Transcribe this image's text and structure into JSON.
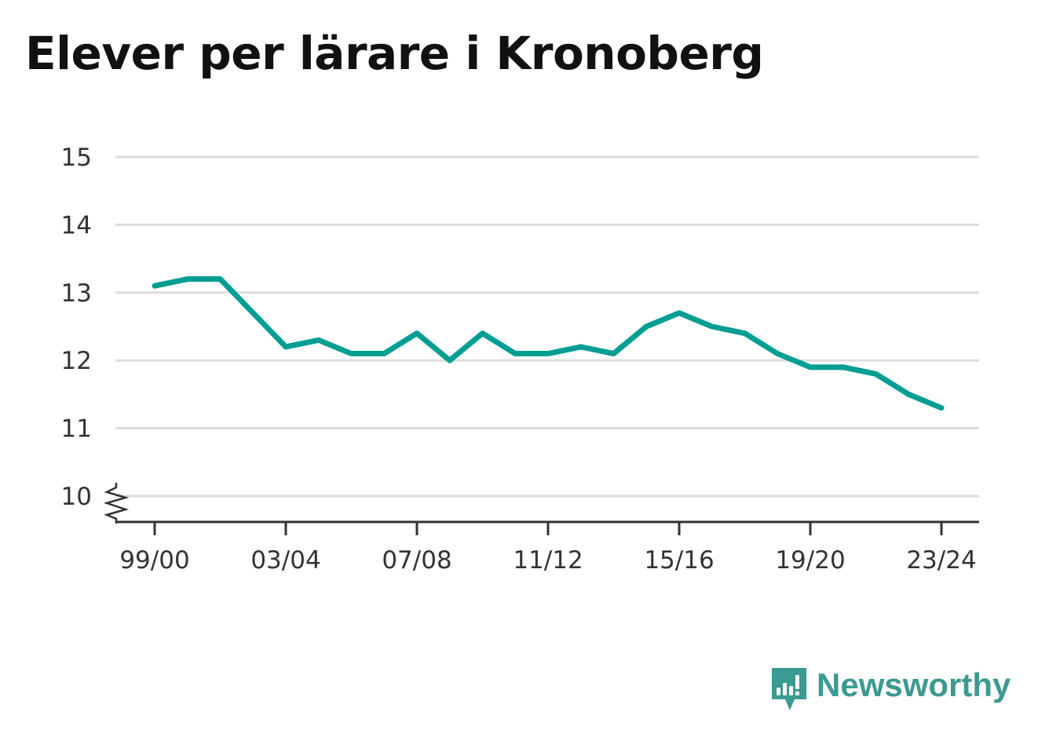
{
  "title": "Elever per lärare i Kronoberg",
  "brand": {
    "name": "Newsworthy",
    "color": "#3b9a91"
  },
  "colors": {
    "line": "#009e93",
    "grid": "#dddddd",
    "axis": "#333333"
  },
  "chart_data": {
    "type": "line",
    "title": "Elever per lärare i Kronoberg",
    "xlabel": "",
    "ylabel": "",
    "ylim": [
      10,
      15
    ],
    "y_axis_break": true,
    "grid": true,
    "x": [
      "99/00",
      "00/01",
      "01/02",
      "02/03",
      "03/04",
      "04/05",
      "05/06",
      "06/07",
      "07/08",
      "08/09",
      "09/10",
      "10/11",
      "11/12",
      "12/13",
      "13/14",
      "14/15",
      "15/16",
      "16/17",
      "17/18",
      "18/19",
      "19/20",
      "20/21",
      "21/22",
      "22/23",
      "23/24"
    ],
    "x_tick_labels": [
      "99/00",
      "03/04",
      "07/08",
      "11/12",
      "15/16",
      "19/20",
      "23/24"
    ],
    "y_tick_labels": [
      "10",
      "11",
      "12",
      "13",
      "14",
      "15"
    ],
    "series": [
      {
        "values": [
          13.1,
          13.2,
          13.2,
          12.7,
          12.2,
          12.3,
          12.1,
          12.1,
          12.4,
          12.0,
          12.4,
          12.1,
          12.1,
          12.2,
          12.1,
          12.5,
          12.7,
          12.5,
          12.4,
          12.1,
          11.9,
          11.9,
          11.8,
          11.5,
          11.3
        ]
      }
    ]
  }
}
